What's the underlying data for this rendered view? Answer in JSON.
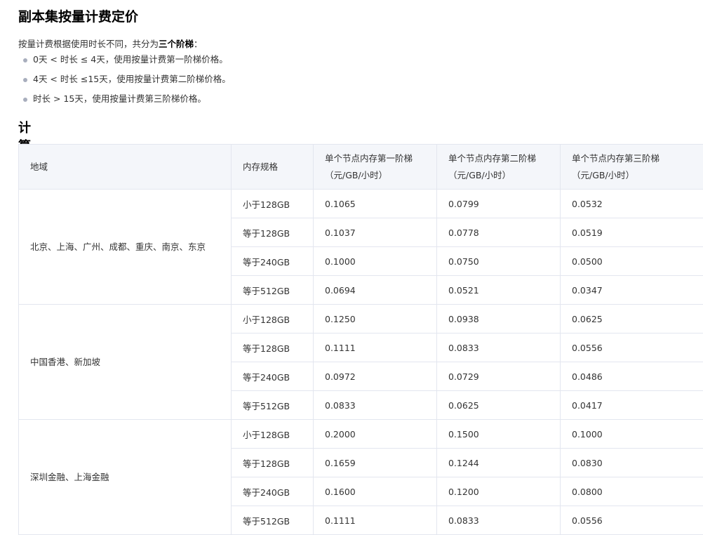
{
  "title": "副本集按量计费定价",
  "intro": {
    "prefix": "按量计费根据使用时长不同，共分为",
    "bold": "三个阶梯",
    "suffix": "："
  },
  "tiers": [
    "0天 < 时长 ≤ 4天，使用按量计费第一阶梯价格。",
    "4天 < 时长 ≤15天，使用按量计费第二阶梯价格。",
    "时长 > 15天，使用按量计费第三阶梯价格。"
  ],
  "section": "计算",
  "table": {
    "headers": [
      {
        "line1": "地域",
        "line2": ""
      },
      {
        "line1": "内存规格",
        "line2": ""
      },
      {
        "line1": "单个节点内存第一阶梯",
        "line2": "（元/GB/小时）"
      },
      {
        "line1": "单个节点内存第二阶梯",
        "line2": "（元/GB/小时）"
      },
      {
        "line1": "单个节点内存第三阶梯",
        "line2": "（元/GB/小时）"
      }
    ],
    "groups": [
      {
        "region": "北京、上海、广州、成都、重庆、南京、东京",
        "rows": [
          [
            "小于128GB",
            "0.1065",
            "0.0799",
            "0.0532"
          ],
          [
            "等于128GB",
            "0.1037",
            "0.0778",
            "0.0519"
          ],
          [
            "等于240GB",
            "0.1000",
            "0.0750",
            "0.0500"
          ],
          [
            "等于512GB",
            "0.0694",
            "0.0521",
            "0.0347"
          ]
        ]
      },
      {
        "region": "中国香港、新加坡",
        "rows": [
          [
            "小于128GB",
            "0.1250",
            "0.0938",
            "0.0625"
          ],
          [
            "等于128GB",
            "0.1111",
            "0.0833",
            "0.0556"
          ],
          [
            "等于240GB",
            "0.0972",
            "0.0729",
            "0.0486"
          ],
          [
            "等于512GB",
            "0.0833",
            "0.0625",
            "0.0417"
          ]
        ]
      },
      {
        "region": "深圳金融、上海金融",
        "rows": [
          [
            "小于128GB",
            "0.2000",
            "0.1500",
            "0.1000"
          ],
          [
            "等于128GB",
            "0.1659",
            "0.1244",
            "0.0830"
          ],
          [
            "等于240GB",
            "0.1600",
            "0.1200",
            "0.0800"
          ],
          [
            "等于512GB",
            "0.1111",
            "0.0833",
            "0.0556"
          ]
        ]
      }
    ]
  }
}
